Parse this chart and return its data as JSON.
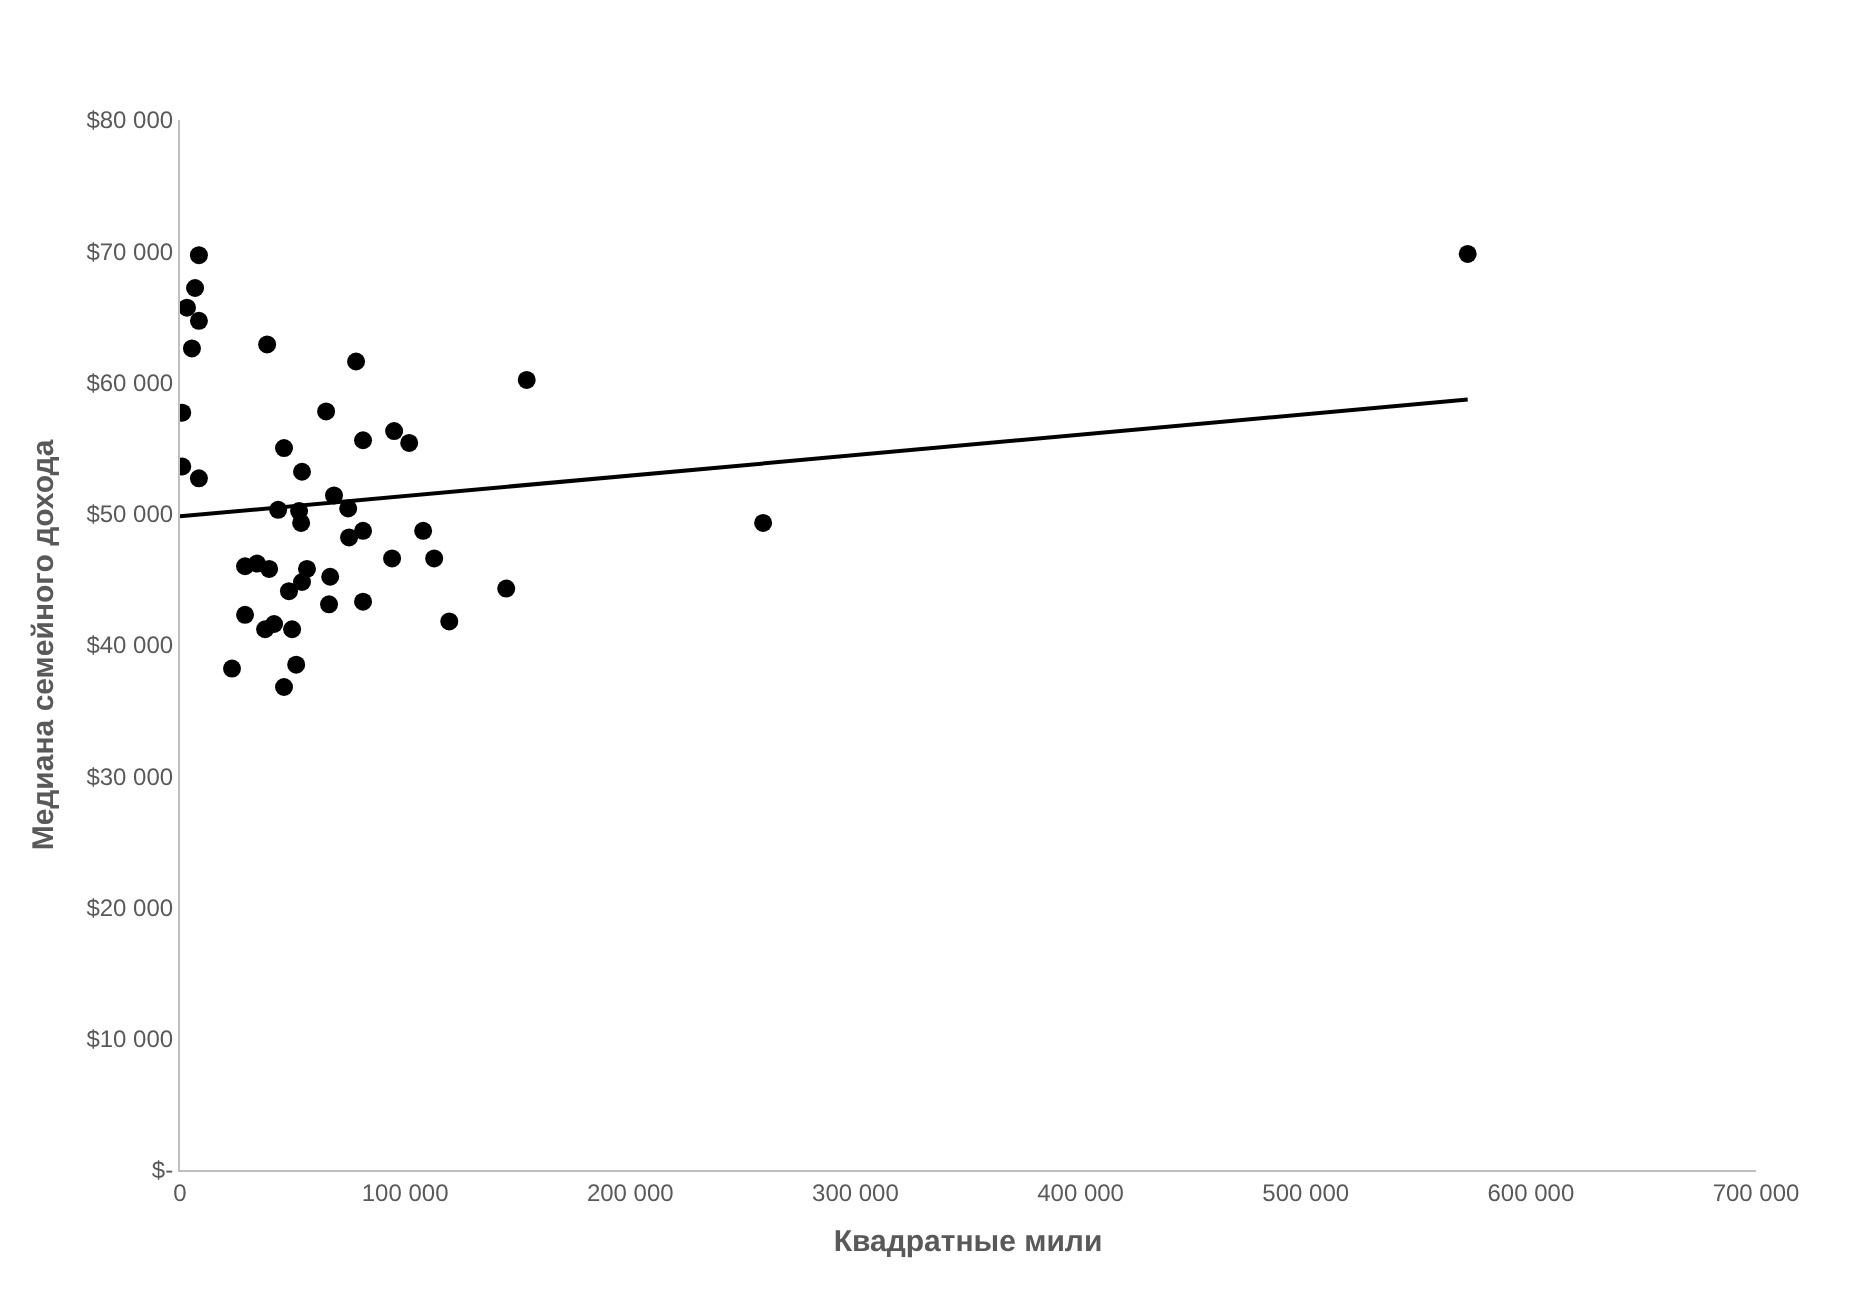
{
  "chart_data": {
    "type": "scatter",
    "xlabel": "Квадратные мили",
    "ylabel": "Медиана семейного дохода",
    "xlim": [
      0,
      700000
    ],
    "xticks": [
      0,
      {
        "value": 100000,
        "label": "100 000"
      },
      {
        "value": 200000,
        "label": "200 000"
      },
      {
        "value": 300000,
        "label": "300 000"
      },
      {
        "value": 400000,
        "label": "400 000"
      },
      {
        "value": 500000,
        "label": "500 000"
      },
      {
        "value": 600000,
        "label": "600 000"
      },
      {
        "value": 700000,
        "label": "700 000"
      }
    ],
    "ylim": [
      0,
      80000
    ],
    "yticks": [
      {
        "value": 0,
        "label": "$-"
      },
      {
        "value": 10000,
        "label": "$10 000"
      },
      {
        "value": 20000,
        "label": "$20 000"
      },
      {
        "value": 30000,
        "label": "$30 000"
      },
      {
        "value": 40000,
        "label": "$40 000"
      },
      {
        "value": 50000,
        "label": "$50 000"
      },
      {
        "value": 60000,
        "label": "$60 000"
      },
      {
        "value": 70000,
        "label": "$70 000"
      },
      {
        "value": 80000,
        "label": "$80 000"
      }
    ],
    "grid": false,
    "marker": "circle",
    "series": [
      {
        "color": "#000000",
        "x": [
          571951,
          8400,
          6700,
          3100,
          8400,
          5300,
          38700,
          78200,
          154000,
          1000,
          64900,
          95100,
          101800,
          81300,
          46200,
          1000,
          8400,
          54200,
          68400,
          74700,
          43600,
          52900,
          53800,
          81300,
          75100,
          108000,
          259000,
          94200,
          112900,
          28900,
          34200,
          39600,
          56400,
          66700,
          54200,
          48400,
          144900,
          66200,
          81300,
          28900,
          119600,
          37800,
          41800,
          49800,
          23100,
          51600,
          46200
        ],
        "values": [
          69800,
          69700,
          67200,
          65700,
          64700,
          62600,
          62900,
          61600,
          60200,
          57700,
          57800,
          56300,
          55400,
          55600,
          55000,
          53600,
          52700,
          53200,
          51400,
          50400,
          50300,
          50200,
          49300,
          48700,
          48200,
          48700,
          49300,
          46600,
          46600,
          46000,
          46200,
          45800,
          45800,
          45200,
          44800,
          44100,
          44300,
          43100,
          43300,
          42300,
          41800,
          41200,
          41600,
          41200,
          38200,
          38500,
          36800
        ]
      },
      {
        "type": "line",
        "color": "#000000",
        "line_style": "solid",
        "marker": "none",
        "x": [
          0,
          571951
        ],
        "values": [
          49800,
          58700
        ]
      }
    ]
  }
}
